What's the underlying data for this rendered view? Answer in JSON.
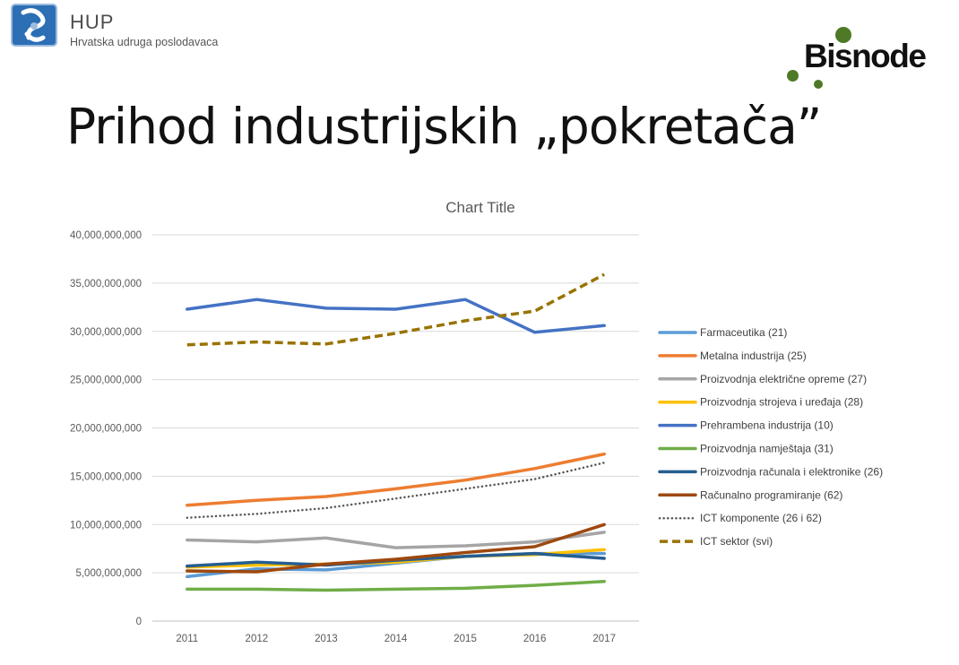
{
  "header": {
    "org_name": "HUP",
    "org_subtitle": "Hrvatska udruga poslodavaca",
    "title": "Prihod industrijskih „pokretača”",
    "partner_logo": "Bisnode"
  },
  "colors": {
    "brand_blue": "#2c6fb5",
    "bisnode_green": "#4e7a27"
  },
  "chart_data": {
    "type": "line",
    "title": "Chart Title",
    "xlabel": "",
    "ylabel": "",
    "x": [
      "2011",
      "2012",
      "2013",
      "2014",
      "2015",
      "2016",
      "2017"
    ],
    "ylim": [
      0,
      40000000000
    ],
    "yticks": [
      0,
      5000000000,
      10000000000,
      15000000000,
      20000000000,
      25000000000,
      30000000000,
      35000000000,
      40000000000
    ],
    "ytick_labels": [
      "0",
      "5,000,000,000",
      "10,000,000,000",
      "15,000,000,000",
      "20,000,000,000",
      "25,000,000,000",
      "30,000,000,000",
      "35,000,000,000",
      "40,000,000,000"
    ],
    "grid": true,
    "legend_position": "right",
    "series": [
      {
        "name": "Farmaceutika (21)",
        "color": "#5b9bd5",
        "style": "solid",
        "values": [
          4600000000,
          5400000000,
          5300000000,
          6000000000,
          6700000000,
          7000000000,
          7000000000
        ]
      },
      {
        "name": "Metalna industrija (25)",
        "color": "#ed7d31",
        "style": "solid",
        "values": [
          12000000000,
          12500000000,
          12900000000,
          13700000000,
          14600000000,
          15800000000,
          17300000000
        ]
      },
      {
        "name": "Proizvodnja električne opreme (27)",
        "color": "#a5a5a5",
        "style": "solid",
        "values": [
          8400000000,
          8200000000,
          8600000000,
          7600000000,
          7800000000,
          8200000000,
          9200000000
        ]
      },
      {
        "name": "Proizvodnja strojeva i uređaja (28)",
        "color": "#ffc000",
        "style": "solid",
        "values": [
          5600000000,
          5800000000,
          5900000000,
          6100000000,
          6700000000,
          6900000000,
          7400000000
        ]
      },
      {
        "name": "Prehrambena industrija (10)",
        "color": "#4472c4",
        "style": "solid",
        "values": [
          32300000000,
          33300000000,
          32400000000,
          32300000000,
          33300000000,
          29900000000,
          30600000000
        ]
      },
      {
        "name": "Proizvodnja namještaja (31)",
        "color": "#70ad47",
        "style": "solid",
        "values": [
          3300000000,
          3300000000,
          3200000000,
          3300000000,
          3400000000,
          3700000000,
          4100000000
        ]
      },
      {
        "name": "Proizvodnja računala i elektronike (26)",
        "color": "#255e91",
        "style": "solid",
        "values": [
          5700000000,
          6100000000,
          5800000000,
          6300000000,
          6700000000,
          7000000000,
          6500000000
        ]
      },
      {
        "name": "Računalno programiranje (62)",
        "color": "#9e480e",
        "style": "solid",
        "values": [
          5200000000,
          5100000000,
          5900000000,
          6400000000,
          7100000000,
          7700000000,
          10000000000
        ]
      },
      {
        "name": "ICT komponente (26 i 62)",
        "color": "#595959",
        "style": "dotted",
        "values": [
          10700000000,
          11100000000,
          11700000000,
          12700000000,
          13700000000,
          14700000000,
          16400000000
        ]
      },
      {
        "name": "ICT sektor (svi)",
        "color": "#997300",
        "style": "dashed",
        "values": [
          28600000000,
          28900000000,
          28700000000,
          29800000000,
          31100000000,
          32100000000,
          35900000000
        ]
      }
    ]
  }
}
